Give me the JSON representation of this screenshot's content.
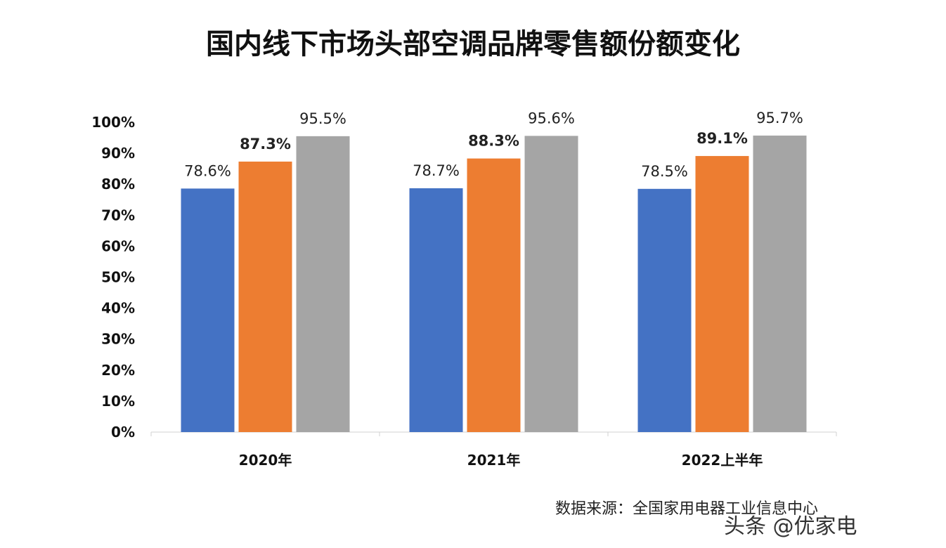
{
  "chart_data": {
    "type": "bar",
    "title": "国内线下市场头部空调品牌零售额份额变化",
    "categories": [
      "2020年",
      "2021年",
      "2022上半年"
    ],
    "series": [
      {
        "values": [
          78.6,
          78.7,
          78.5
        ],
        "labels": [
          "78.6%",
          "78.7%",
          "78.5%"
        ],
        "color": "#4472C4",
        "label_bold": false
      },
      {
        "values": [
          87.3,
          88.3,
          89.1
        ],
        "labels": [
          "87.3%",
          "88.3%",
          "89.1%"
        ],
        "color": "#ED7D31",
        "label_bold": true
      },
      {
        "values": [
          95.5,
          95.6,
          95.7
        ],
        "labels": [
          "95.5%",
          "95.6%",
          "95.7%"
        ],
        "color": "#A5A5A5",
        "label_bold": false
      }
    ],
    "yticks": [
      "0%",
      "10%",
      "20%",
      "30%",
      "40%",
      "50%",
      "60%",
      "70%",
      "80%",
      "90%",
      "100%"
    ],
    "ylim": [
      0,
      100
    ],
    "grid": false,
    "legend": "none"
  },
  "source": "数据来源：全国家用电器工业信息中心",
  "watermark": "头条 @优家电"
}
